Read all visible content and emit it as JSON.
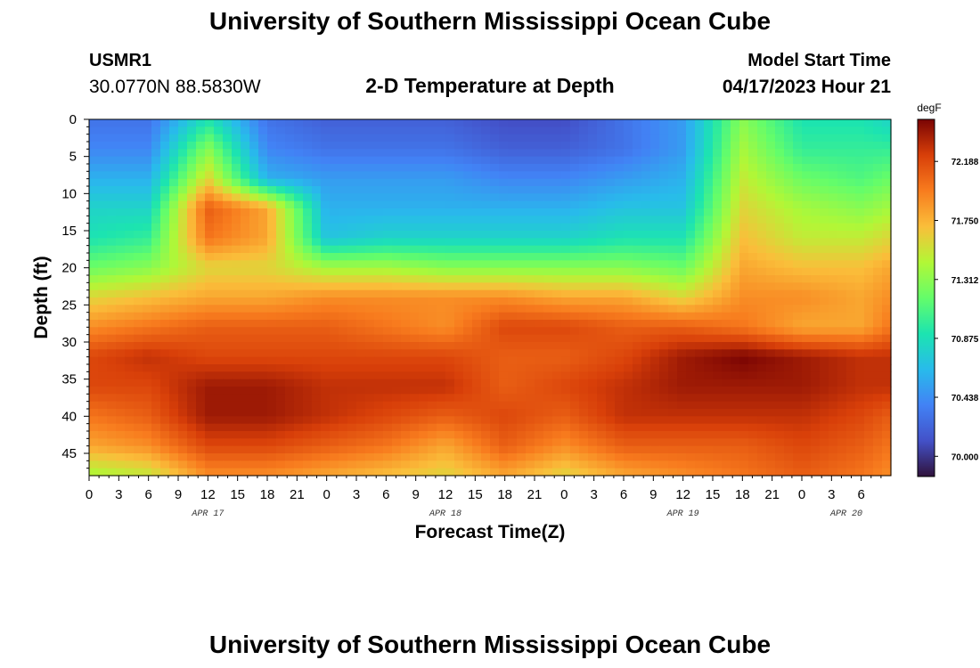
{
  "header": {
    "title": "University of Southern Mississippi Ocean Cube",
    "station_id": "USMR1",
    "coordinates": "30.0770N  88.5830W",
    "plot_title": "2-D Temperature at Depth",
    "model_label": "Model Start Time",
    "model_time": "04/17/2023 Hour 21"
  },
  "footer": {
    "title": "University of Southern Mississippi Ocean Cube"
  },
  "chart_data": {
    "type": "heatmap",
    "title": "2-D Temperature at Depth",
    "xlabel": "Forecast Time(Z)",
    "ylabel": "Depth (ft)",
    "colorbar_unit": "degF",
    "x_range_hours": [
      0,
      81
    ],
    "y_range_ft": [
      0,
      48
    ],
    "x_ticks": [
      "0",
      "3",
      "6",
      "9",
      "12",
      "15",
      "18",
      "21",
      "0",
      "3",
      "6",
      "9",
      "12",
      "15",
      "18",
      "21",
      "0",
      "3",
      "6",
      "9",
      "12",
      "15",
      "18",
      "21",
      "0",
      "3",
      "6"
    ],
    "y_ticks": [
      "0",
      "5",
      "10",
      "15",
      "20",
      "25",
      "30",
      "35",
      "40",
      "45"
    ],
    "y_tick_values": [
      0,
      5,
      10,
      15,
      20,
      25,
      30,
      35,
      40,
      45
    ],
    "date_labels": [
      {
        "text": "APR 17",
        "hour": 12
      },
      {
        "text": "APR 18",
        "hour": 36
      },
      {
        "text": "APR 19",
        "hour": 60
      },
      {
        "text": "APR 20",
        "hour": 76.5
      }
    ],
    "colorbar": {
      "min": 69.85,
      "max": 72.5,
      "ticks": [
        "72.188",
        "71.750",
        "71.312",
        "70.875",
        "70.438",
        "70.000"
      ],
      "tick_values": [
        72.188,
        71.75,
        71.312,
        70.875,
        70.438,
        70.0
      ]
    },
    "grid": {
      "hours": [
        0,
        6,
        12,
        18,
        24,
        30,
        36,
        42,
        48,
        54,
        60,
        66,
        72,
        78,
        81
      ],
      "depths": [
        0,
        4,
        8,
        12,
        16,
        20,
        24,
        28,
        32,
        36,
        40,
        44,
        48
      ],
      "values": [
        [
          70.3,
          70.3,
          70.9,
          70.3,
          70.2,
          70.2,
          70.2,
          70.1,
          70.1,
          70.3,
          70.5,
          71.3,
          70.9,
          70.9,
          70.8
        ],
        [
          70.4,
          70.4,
          71.3,
          70.4,
          70.3,
          70.3,
          70.3,
          70.2,
          70.2,
          70.3,
          70.5,
          71.4,
          71.0,
          71.0,
          71.0
        ],
        [
          70.6,
          70.6,
          71.6,
          70.6,
          70.5,
          70.5,
          70.5,
          70.4,
          70.4,
          70.5,
          70.6,
          71.5,
          71.2,
          71.1,
          71.2
        ],
        [
          70.8,
          70.8,
          72.1,
          71.8,
          70.6,
          70.6,
          70.6,
          70.6,
          70.6,
          70.7,
          70.7,
          71.6,
          71.4,
          71.3,
          71.4
        ],
        [
          70.9,
          71.0,
          72.0,
          71.8,
          70.7,
          70.8,
          70.8,
          70.8,
          70.8,
          70.9,
          70.9,
          71.7,
          71.5,
          71.5,
          71.6
        ],
        [
          71.2,
          71.3,
          71.6,
          71.6,
          71.4,
          71.4,
          71.3,
          71.3,
          71.3,
          71.3,
          71.2,
          71.8,
          71.7,
          71.7,
          71.8
        ],
        [
          71.6,
          71.7,
          71.8,
          71.8,
          71.9,
          71.9,
          71.9,
          71.9,
          71.8,
          71.8,
          71.6,
          71.9,
          71.9,
          71.8,
          71.9
        ],
        [
          71.9,
          72.0,
          72.1,
          72.1,
          72.1,
          72.0,
          71.9,
          72.2,
          72.2,
          72.1,
          72.1,
          72.0,
          71.8,
          71.8,
          72.0
        ],
        [
          72.2,
          72.3,
          72.2,
          72.2,
          72.2,
          72.2,
          72.2,
          72.1,
          72.1,
          72.2,
          72.4,
          72.5,
          72.4,
          72.3,
          72.3
        ],
        [
          72.2,
          72.2,
          72.4,
          72.4,
          72.3,
          72.3,
          72.3,
          72.1,
          72.2,
          72.3,
          72.4,
          72.4,
          72.4,
          72.3,
          72.3
        ],
        [
          72.0,
          72.1,
          72.4,
          72.4,
          72.3,
          72.2,
          72.1,
          72.2,
          72.1,
          72.3,
          72.3,
          72.3,
          72.3,
          72.2,
          72.1
        ],
        [
          71.8,
          71.9,
          72.2,
          72.2,
          72.1,
          72.0,
          71.8,
          72.1,
          71.9,
          72.1,
          72.1,
          72.1,
          72.2,
          72.1,
          72.0
        ],
        [
          71.4,
          71.5,
          71.9,
          71.9,
          71.8,
          71.7,
          71.6,
          71.8,
          71.6,
          71.8,
          71.9,
          72.0,
          72.1,
          72.0,
          71.9
        ]
      ]
    }
  }
}
